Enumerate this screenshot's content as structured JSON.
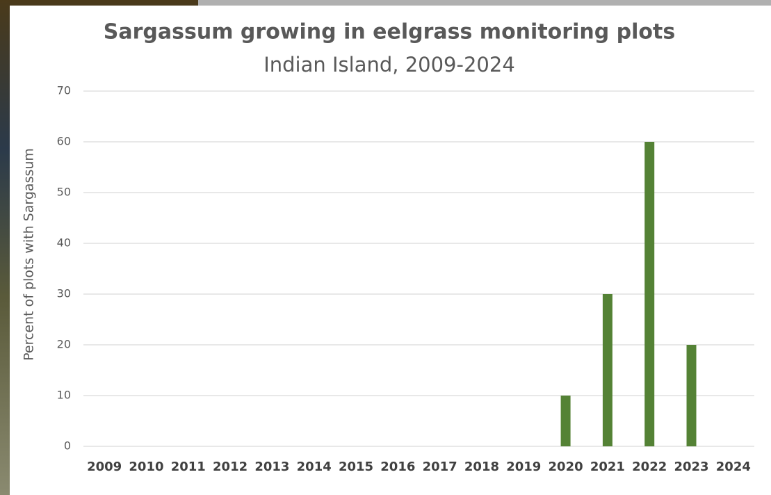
{
  "chart_data": {
    "type": "bar",
    "title": "Sargassum growing in eelgrass monitoring plots",
    "subtitle": "Indian Island, 2009-2024",
    "y_label": "Percent of plots with Sargassum",
    "categories": [
      "2009",
      "2010",
      "2011",
      "2012",
      "2013",
      "2014",
      "2015",
      "2016",
      "2017",
      "2018",
      "2019",
      "2020",
      "2021",
      "2022",
      "2023",
      "2024"
    ],
    "values": [
      0,
      0,
      0,
      0,
      0,
      0,
      0,
      0,
      0,
      0,
      0,
      10,
      30,
      60,
      20,
      0
    ],
    "color": "#548235",
    "ylim": [
      0,
      70
    ],
    "yticks": [
      0,
      10,
      20,
      30,
      40,
      50,
      60,
      70
    ],
    "grid": true
  }
}
